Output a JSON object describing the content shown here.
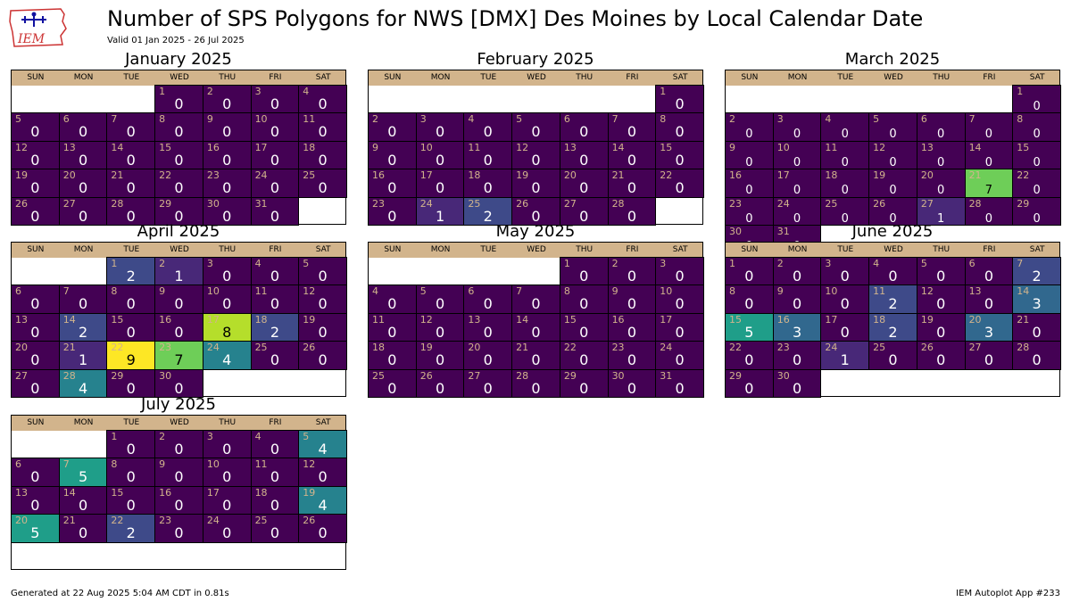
{
  "header": {
    "title": "Number of SPS Polygons for NWS [DMX] Des Moines by Local Calendar Date",
    "subtitle": "Valid 01 Jan 2025 - 26 Jul 2025",
    "logo_text": "IEM"
  },
  "footer": {
    "generated": "Generated at 22 Aug 2025 5:04 AM CDT in 0.81s",
    "app": "IEM Autoplot App #233"
  },
  "colors": {
    "header_tan": "#d2b48c",
    "daynum_tan": "#d2b48c",
    "scale": [
      "#440154",
      "#482878",
      "#3e4a89",
      "#31688e",
      "#26828e",
      "#1f9e89",
      "#35b779",
      "#6ece58",
      "#b5de2b",
      "#fde725"
    ]
  },
  "chart_data": {
    "type": "heatmap",
    "dow_labels": [
      "SUN",
      "MON",
      "TUE",
      "WED",
      "THU",
      "FRI",
      "SAT"
    ],
    "vmax": 9,
    "months": [
      {
        "title": "January 2025",
        "first_dow": 3,
        "values": [
          0,
          0,
          0,
          0,
          0,
          0,
          0,
          0,
          0,
          0,
          0,
          0,
          0,
          0,
          0,
          0,
          0,
          0,
          0,
          0,
          0,
          0,
          0,
          0,
          0,
          0,
          0,
          0,
          0,
          0,
          0
        ]
      },
      {
        "title": "February 2025",
        "first_dow": 6,
        "values": [
          0,
          0,
          0,
          0,
          0,
          0,
          0,
          0,
          0,
          0,
          0,
          0,
          0,
          0,
          0,
          0,
          0,
          0,
          0,
          0,
          0,
          0,
          0,
          1,
          2,
          0,
          0,
          0
        ]
      },
      {
        "title": "March 2025",
        "first_dow": 6,
        "values": [
          0,
          0,
          0,
          0,
          0,
          0,
          0,
          0,
          0,
          0,
          0,
          0,
          0,
          0,
          0,
          0,
          0,
          0,
          0,
          0,
          7,
          0,
          0,
          0,
          0,
          0,
          1,
          0,
          0,
          0,
          0
        ]
      },
      {
        "title": "April 2025",
        "first_dow": 2,
        "values": [
          2,
          1,
          0,
          0,
          0,
          0,
          0,
          0,
          0,
          0,
          0,
          0,
          0,
          2,
          0,
          0,
          8,
          2,
          0,
          0,
          1,
          9,
          7,
          4,
          0,
          0,
          0,
          4,
          0,
          0
        ]
      },
      {
        "title": "May 2025",
        "first_dow": 4,
        "values": [
          0,
          0,
          0,
          0,
          0,
          0,
          0,
          0,
          0,
          0,
          0,
          0,
          0,
          0,
          0,
          0,
          0,
          0,
          0,
          0,
          0,
          0,
          0,
          0,
          0,
          0,
          0,
          0,
          0,
          0,
          0
        ]
      },
      {
        "title": "June 2025",
        "first_dow": 0,
        "values": [
          0,
          0,
          0,
          0,
          0,
          0,
          2,
          0,
          0,
          0,
          2,
          0,
          0,
          3,
          5,
          3,
          0,
          2,
          0,
          3,
          0,
          0,
          0,
          1,
          0,
          0,
          0,
          0,
          0,
          0
        ]
      },
      {
        "title": "July 2025",
        "first_dow": 2,
        "values": [
          0,
          0,
          0,
          0,
          4,
          0,
          5,
          0,
          0,
          0,
          0,
          0,
          0,
          0,
          0,
          0,
          0,
          0,
          4,
          5,
          0,
          2,
          0,
          0,
          0,
          0
        ]
      }
    ]
  }
}
